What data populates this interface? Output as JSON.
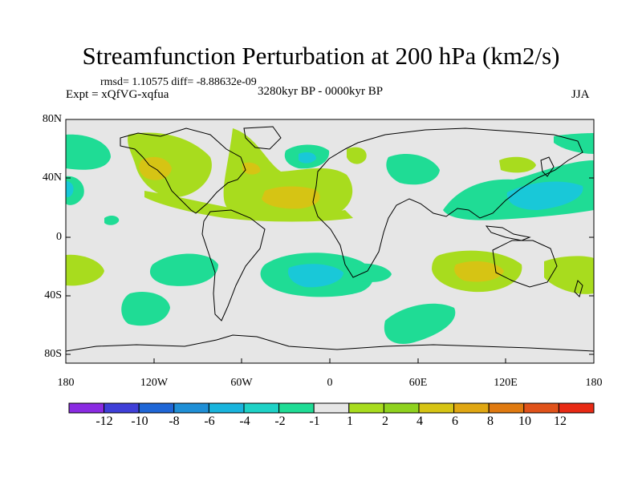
{
  "title": "Streamfunction Perturbation at 200 hPa (km2/s)",
  "stats_line": "rmsd= 1.10575 diff= -8.88632e-09",
  "experiment": "Expt = xQfVG-xqfua",
  "period": "3280kyr BP - 0000kyr BP",
  "season": "JJA",
  "lat_ticks": [
    "80N",
    "40N",
    "0",
    "40S",
    "80S"
  ],
  "lon_ticks": [
    "180",
    "120W",
    "60W",
    "0",
    "60E",
    "120E",
    "180"
  ],
  "colorbar": {
    "labels": [
      "-12",
      "-10",
      "-8",
      "-6",
      "-4",
      "-2",
      "-1",
      "1",
      "2",
      "4",
      "6",
      "8",
      "10",
      "12"
    ],
    "colors": [
      "#8a2be2",
      "#3f3fd8",
      "#1f66d6",
      "#1f8fd6",
      "#19b4dd",
      "#1ed2c6",
      "#1fdc95",
      "#e6e6e6",
      "#a8dc1e",
      "#8fd21e",
      "#d6c414",
      "#e0a712",
      "#e07a10",
      "#e0521a",
      "#e82a14"
    ]
  },
  "colors": {
    "neutral": "#e6e6e6",
    "neg1": "#1fdc95",
    "neg2": "#19c8d8",
    "pos1": "#a8dc1e",
    "pos2": "#d6c414",
    "pos3": "#e0a712"
  }
}
